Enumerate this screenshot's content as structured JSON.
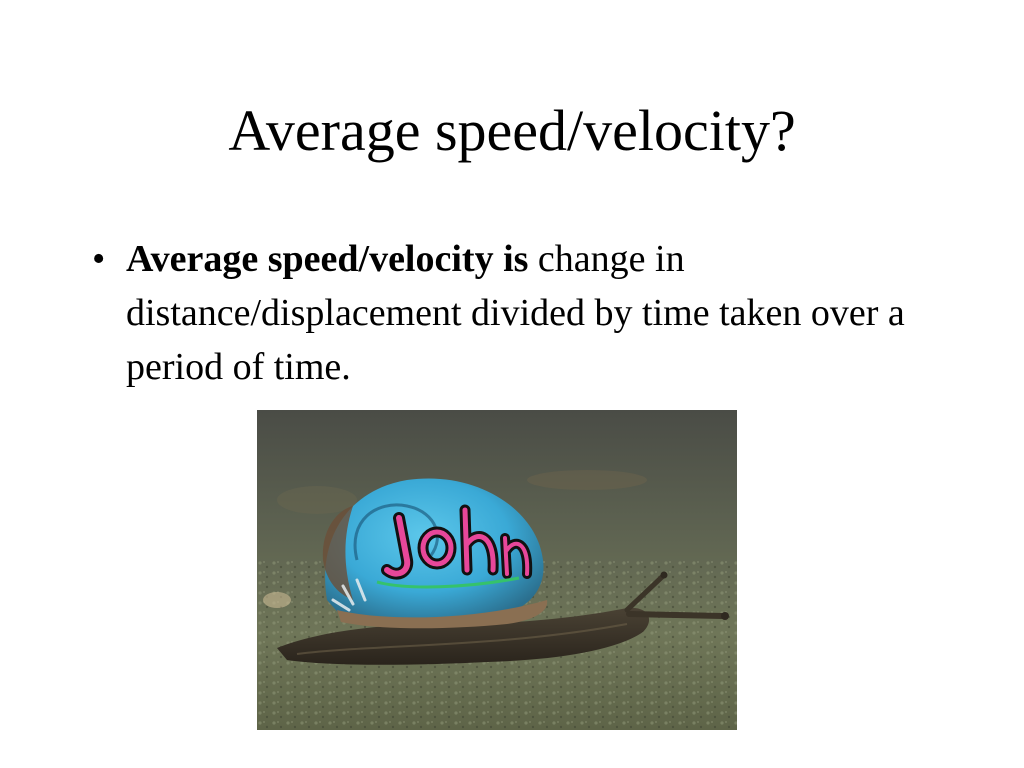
{
  "slide": {
    "title": "Average speed/velocity?",
    "bullets": [
      {
        "marker": "•",
        "bold_text": "Average speed/velocity is",
        "text": " change in distance/displacement divided by time taken over a period of time."
      }
    ]
  },
  "image": {
    "subject": "snail-with-painted-graffiti-shell",
    "graffiti_text": "John",
    "colors": {
      "shell_blue": "#3fb6e0",
      "shell_pink": "#e8479a",
      "ground": "#6e7a5a",
      "body": "#3b3428"
    }
  }
}
